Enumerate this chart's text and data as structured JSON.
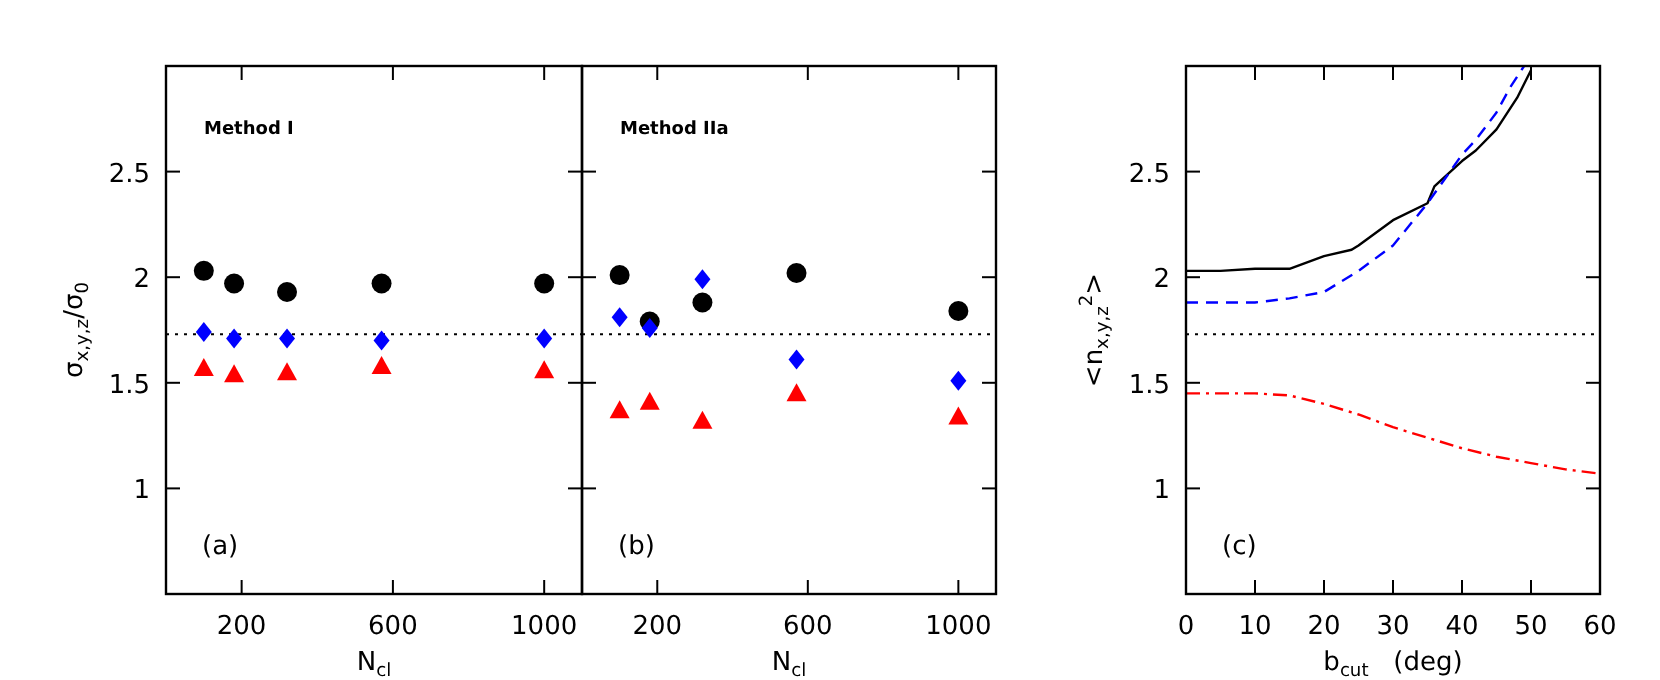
{
  "chart_data": [
    {
      "type": "scatter",
      "ylabel": "σ$_{x,y,z}$/σ$_{0}$",
      "xlabel": "N$_{cl}$",
      "annotations": [
        "Method I",
        "(a)"
      ],
      "xlim": [
        0,
        1100
      ],
      "xticks": [
        200,
        600,
        1000
      ],
      "ylim": [
        0.5,
        3.0
      ],
      "yticks": [
        1,
        1.5,
        2,
        2.5
      ],
      "ref_lines": [
        {
          "axis": "y",
          "value": 1.73,
          "line_style": "dotted",
          "color": "#000000"
        }
      ],
      "series": [
        {
          "color": "#000000",
          "marker": "circle",
          "x": [
            100,
            180,
            320,
            570,
            1000
          ],
          "values": [
            2.03,
            1.97,
            1.93,
            1.97,
            1.97
          ]
        },
        {
          "color": "#0000ff",
          "marker": "diamond",
          "x": [
            100,
            180,
            320,
            570,
            1000
          ],
          "values": [
            1.74,
            1.71,
            1.71,
            1.7,
            1.71
          ]
        },
        {
          "color": "#ff0000",
          "marker": "triangle",
          "x": [
            100,
            180,
            320,
            570,
            1000
          ],
          "values": [
            1.57,
            1.54,
            1.55,
            1.58,
            1.56
          ]
        }
      ]
    },
    {
      "type": "scatter",
      "xlabel": "N$_{cl}$",
      "annotations": [
        "Method IIa",
        "(b)"
      ],
      "tick_labels": "x",
      "xlim": [
        0,
        1100
      ],
      "xticks": [
        200,
        600,
        1000
      ],
      "ylim": [
        0.5,
        3.0
      ],
      "yticks": [
        1,
        1.5,
        2,
        2.5
      ],
      "ref_lines": [
        {
          "axis": "y",
          "value": 1.73,
          "line_style": "dotted",
          "color": "#000000"
        }
      ],
      "series": [
        {
          "color": "#000000",
          "marker": "circle",
          "x": [
            100,
            180,
            320,
            570,
            1000
          ],
          "values": [
            2.01,
            1.79,
            1.88,
            2.02,
            1.84
          ]
        },
        {
          "color": "#0000ff",
          "marker": "diamond",
          "x": [
            100,
            180,
            320,
            570,
            1000
          ],
          "values": [
            1.81,
            1.76,
            1.99,
            1.61,
            1.51
          ]
        },
        {
          "color": "#ff0000",
          "marker": "triangle",
          "x": [
            100,
            180,
            320,
            570,
            1000
          ],
          "values": [
            1.37,
            1.41,
            1.32,
            1.45,
            1.34
          ]
        }
      ]
    },
    {
      "type": "line",
      "ylabel": "<n$_{x,y,z}$$^{2}$>",
      "xlabel": "b$_{cut}$   (deg)",
      "annotations": [
        "(c)"
      ],
      "xlim": [
        0,
        60
      ],
      "xticks": [
        0,
        10,
        20,
        30,
        40,
        50,
        60
      ],
      "ylim": [
        0.5,
        3.0
      ],
      "yticks": [
        1,
        1.5,
        2,
        2.5
      ],
      "ref_lines": [
        {
          "axis": "y",
          "value": 1.73,
          "line_style": "dotted",
          "color": "#000000"
        }
      ],
      "series": [
        {
          "color": "#000000",
          "line_style": "solid",
          "x": [
            0,
            5,
            10,
            15,
            20,
            24,
            25,
            30,
            35,
            36,
            40,
            42,
            45,
            48,
            50
          ],
          "values": [
            2.03,
            2.03,
            2.04,
            2.04,
            2.1,
            2.13,
            2.15,
            2.27,
            2.35,
            2.43,
            2.55,
            2.6,
            2.7,
            2.85,
            2.98
          ]
        },
        {
          "color": "#0000ff",
          "line_style": "dashed",
          "x": [
            0,
            10,
            15,
            20,
            25,
            30,
            35,
            40,
            42,
            45,
            47,
            49
          ],
          "values": [
            1.88,
            1.88,
            1.9,
            1.93,
            2.03,
            2.15,
            2.35,
            2.58,
            2.65,
            2.78,
            2.9,
            3.0
          ]
        },
        {
          "color": "#ff0000",
          "line_style": "dashdot",
          "x": [
            0,
            10,
            15,
            20,
            25,
            30,
            35,
            40,
            45,
            50,
            55,
            60
          ],
          "values": [
            1.45,
            1.45,
            1.44,
            1.4,
            1.35,
            1.29,
            1.24,
            1.19,
            1.15,
            1.12,
            1.09,
            1.07
          ]
        }
      ]
    }
  ]
}
